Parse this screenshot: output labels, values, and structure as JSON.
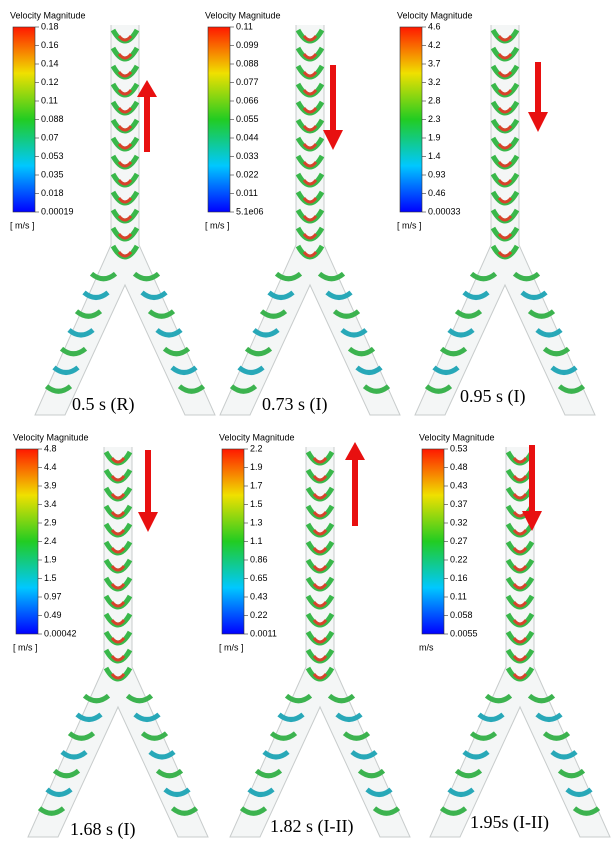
{
  "panels": [
    {
      "title": "Velocity Magnitude",
      "scale": [
        "0.18",
        "0.16",
        "0.14",
        "0.12",
        "0.11",
        "0.088",
        "0.07",
        "0.053",
        "0.035",
        "0.018",
        "0.00019"
      ],
      "unit": "[ m/s ]",
      "time": "0.5 s (R)"
    },
    {
      "title": "Velocity Magnitude",
      "scale": [
        "0.11",
        "0.099",
        "0.088",
        "0.077",
        "0.066",
        "0.055",
        "0.044",
        "0.033",
        "0.022",
        "0.011",
        "5.1e06"
      ],
      "unit": "[ m/s ]",
      "time": "0.73 s (I)"
    },
    {
      "title": "Velocity Magnitude",
      "scale": [
        "4.6",
        "4.2",
        "3.7",
        "3.2",
        "2.8",
        "2.3",
        "1.9",
        "1.4",
        "0.93",
        "0.46",
        "0.00033"
      ],
      "unit": "[ m/s ]",
      "time": "0.95 s (I)"
    },
    {
      "title": "Velocity Magnitude",
      "scale": [
        "4.8",
        "4.4",
        "3.9",
        "3.4",
        "2.9",
        "2.4",
        "1.9",
        "1.5",
        "0.97",
        "0.49",
        "0.00042"
      ],
      "unit": "[ m/s ]",
      "time": "1.68 s (I)"
    },
    {
      "title": "Velocity Magnitude",
      "scale": [
        "2.2",
        "1.9",
        "1.7",
        "1.5",
        "1.3",
        "1.1",
        "0.86",
        "0.65",
        "0.43",
        "0.22",
        "0.0011"
      ],
      "unit": "[ m/s ]",
      "time": "1.82 s (I-II)"
    },
    {
      "title": "Velocity Magnitude",
      "scale": [
        "0.53",
        "0.48",
        "0.43",
        "0.37",
        "0.32",
        "0.27",
        "0.22",
        "0.16",
        "0.11",
        "0.058",
        "0.0055"
      ],
      "unit": "m/s",
      "time": "1.95s (I-II)"
    }
  ]
}
